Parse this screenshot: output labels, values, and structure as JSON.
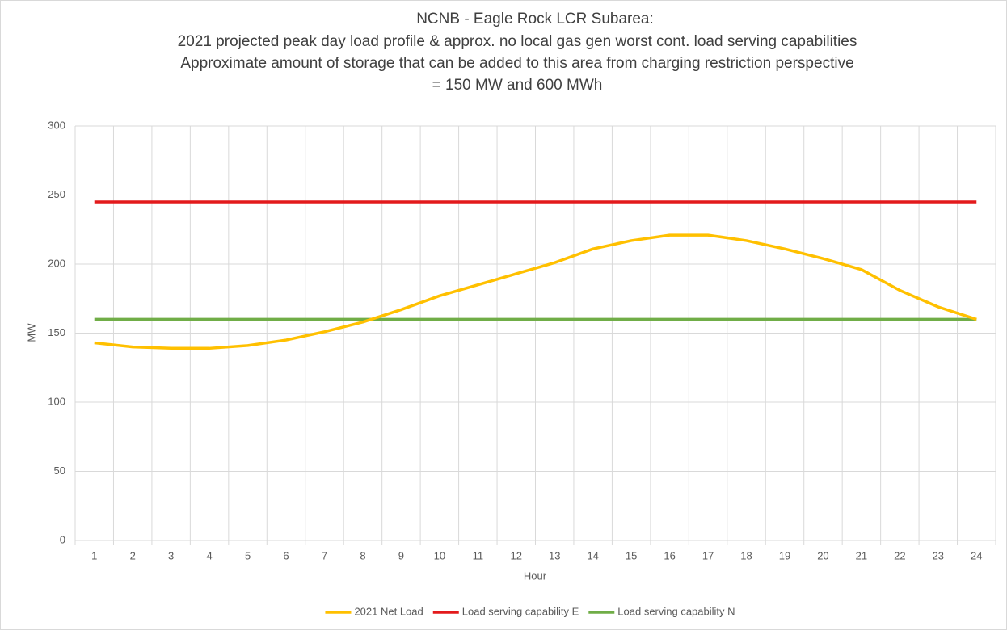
{
  "chart_data": {
    "type": "line",
    "title": [
      "NCNB - Eagle Rock LCR Subarea:",
      "2021 projected peak day load profile & approx. no local gas gen worst cont. load serving capabilities",
      "Approximate amount of storage that can be added to this area from charging restriction perspective",
      "= 150 MW and 600 MWh"
    ],
    "x_label": "Hour",
    "y_label": "MW",
    "categories": [
      "1",
      "2",
      "3",
      "4",
      "5",
      "6",
      "7",
      "8",
      "9",
      "10",
      "11",
      "12",
      "13",
      "14",
      "15",
      "16",
      "17",
      "18",
      "19",
      "20",
      "21",
      "22",
      "23",
      "24"
    ],
    "series": [
      {
        "name": "2021 Net Load",
        "color": "#ffc000",
        "values": [
          143,
          140,
          139,
          139,
          141,
          145,
          151,
          158,
          167,
          177,
          185,
          193,
          201,
          211,
          217,
          221,
          221,
          217,
          211,
          204,
          196,
          181,
          169,
          160
        ]
      },
      {
        "name": "Load serving capability E",
        "color": "#e31a1c",
        "values": [
          245,
          245,
          245,
          245,
          245,
          245,
          245,
          245,
          245,
          245,
          245,
          245,
          245,
          245,
          245,
          245,
          245,
          245,
          245,
          245,
          245,
          245,
          245,
          245
        ]
      },
      {
        "name": "Load serving capability N",
        "color": "#70ad47",
        "values": [
          160,
          160,
          160,
          160,
          160,
          160,
          160,
          160,
          160,
          160,
          160,
          160,
          160,
          160,
          160,
          160,
          160,
          160,
          160,
          160,
          160,
          160,
          160,
          160
        ]
      }
    ],
    "ylim": [
      0,
      300
    ],
    "yticks": [
      0,
      50,
      100,
      150,
      200,
      250,
      300
    ],
    "grid": true,
    "legend": "bottom"
  }
}
